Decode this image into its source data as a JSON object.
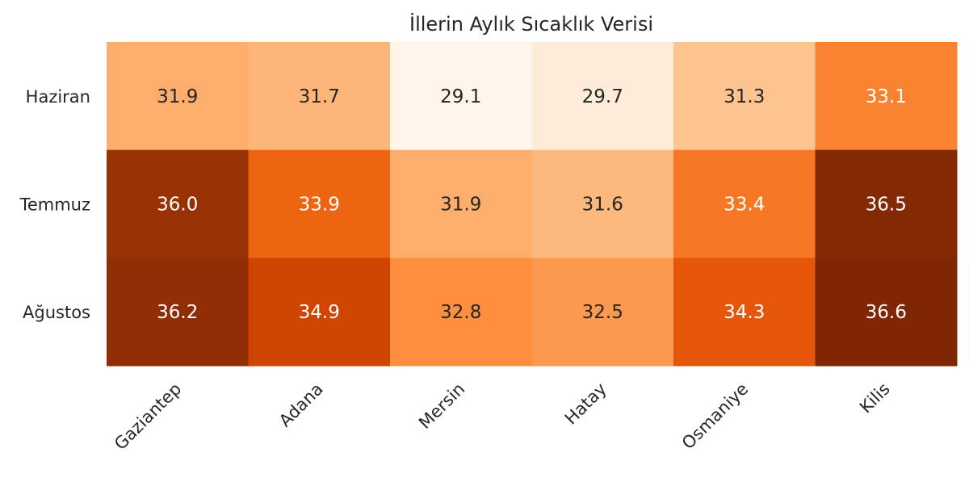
{
  "chart_data": {
    "type": "heatmap",
    "title": "İllerin Aylık Sıcaklık Verisi",
    "xlabel": "",
    "ylabel": "",
    "x_categories": [
      "Gaziantep",
      "Adana",
      "Mersin",
      "Hatay",
      "Osmaniye",
      "Kilis"
    ],
    "y_categories": [
      "Haziran",
      "Temmuz",
      "Ağustos"
    ],
    "values": [
      [
        31.9,
        31.7,
        29.1,
        29.7,
        31.3,
        33.1
      ],
      [
        36.0,
        33.9,
        31.9,
        31.6,
        33.4,
        36.5
      ],
      [
        36.2,
        34.9,
        32.8,
        32.5,
        34.3,
        36.6
      ]
    ],
    "value_format": "0.0",
    "colormap": "Oranges",
    "color_range": [
      29.1,
      36.6
    ],
    "colorbar": false,
    "x_tick_rotation_deg": 45,
    "colors": {
      "text_dark": "#262626",
      "text_light": "#ffffff",
      "title": "#262626"
    }
  }
}
